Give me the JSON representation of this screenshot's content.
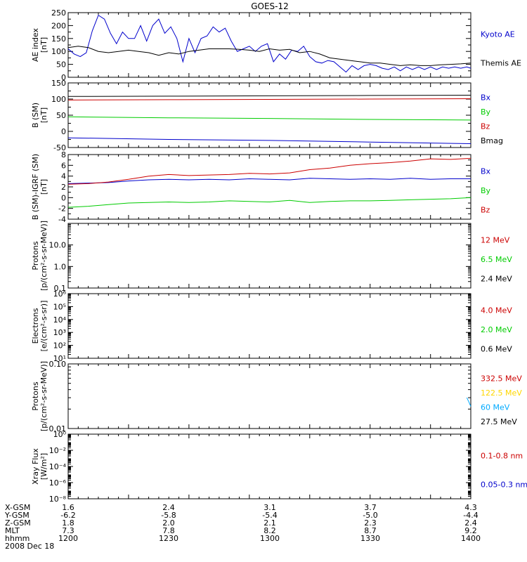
{
  "title": "GOES-12",
  "time_axis": {
    "range": [
      1200,
      1400
    ],
    "rows": [
      {
        "label": "X-GSM",
        "values": [
          "1.6",
          "2.4",
          "3.1",
          "3.7",
          "4.3"
        ]
      },
      {
        "label": "Y-GSM",
        "values": [
          "-6.2",
          "-5.8",
          "-5.4",
          "-5.0",
          "-4.4"
        ]
      },
      {
        "label": "Z-GSM",
        "values": [
          "1.8",
          "2.0",
          "2.1",
          "2.3",
          "2.4"
        ]
      },
      {
        "label": "MLT",
        "values": [
          "7.3",
          "7.8",
          "8.2",
          "8.7",
          "9.2"
        ]
      },
      {
        "label": "hhmm",
        "values": [
          "1200",
          "1230",
          "1300",
          "1330",
          "1400"
        ]
      }
    ],
    "date": "2008 Dec 18"
  },
  "chart_data": [
    {
      "type": "line",
      "ylabel": "AE index",
      "yunit": "[nT]",
      "ylim": [
        0,
        250
      ],
      "yticks": [
        "0",
        "50",
        "100",
        "150",
        "200",
        "250"
      ],
      "series": [
        {
          "name": "Kyoto AE",
          "color": "#0000cc",
          "x": [
            1200,
            1203,
            1206,
            1209,
            1212,
            1215,
            1218,
            1221,
            1224,
            1227,
            1230,
            1233,
            1236,
            1239,
            1242,
            1245,
            1248,
            1251,
            1254,
            1257,
            1260,
            1263,
            1266,
            1269,
            1272,
            1275,
            1278,
            1281,
            1284,
            1287,
            1290,
            1293,
            1296,
            1299,
            1302,
            1305,
            1308,
            1311,
            1314,
            1317,
            1320,
            1323,
            1326,
            1329,
            1332,
            1335,
            1338,
            1341,
            1344,
            1347,
            1350,
            1353,
            1356,
            1359,
            1362,
            1365,
            1368,
            1371,
            1374,
            1377,
            1380,
            1383,
            1386,
            1389,
            1392,
            1395,
            1398,
            1400
          ],
          "y": [
            110,
            90,
            80,
            95,
            180,
            240,
            225,
            170,
            130,
            175,
            150,
            150,
            200,
            140,
            200,
            225,
            170,
            195,
            150,
            60,
            150,
            95,
            150,
            160,
            195,
            175,
            190,
            140,
            100,
            110,
            120,
            100,
            120,
            130,
            60,
            90,
            70,
            105,
            100,
            120,
            80,
            60,
            55,
            65,
            60,
            40,
            20,
            45,
            30,
            45,
            50,
            45,
            35,
            30,
            40,
            25,
            40,
            30,
            40,
            30,
            40,
            30,
            40,
            35,
            40,
            35,
            40,
            35
          ]
        },
        {
          "name": "Themis AE",
          "color": "#000000",
          "x": [
            1200,
            1205,
            1210,
            1215,
            1220,
            1225,
            1230,
            1235,
            1240,
            1245,
            1250,
            1255,
            1260,
            1265,
            1270,
            1275,
            1280,
            1285,
            1290,
            1295,
            1300,
            1305,
            1310,
            1315,
            1320,
            1325,
            1330,
            1335,
            1340,
            1345,
            1350,
            1355,
            1360,
            1365,
            1370,
            1375,
            1380,
            1385,
            1390,
            1395,
            1400
          ],
          "y": [
            115,
            120,
            115,
            100,
            95,
            100,
            105,
            100,
            95,
            85,
            95,
            90,
            100,
            105,
            110,
            110,
            110,
            108,
            105,
            100,
            110,
            105,
            108,
            95,
            100,
            90,
            75,
            70,
            65,
            60,
            55,
            55,
            50,
            45,
            48,
            45,
            45,
            48,
            50,
            52,
            55
          ]
        }
      ]
    },
    {
      "type": "line",
      "ylabel": "B (SM)",
      "yunit": "[nT]",
      "ylim": [
        -50,
        150
      ],
      "yticks": [
        "-50",
        "0",
        "50",
        "100",
        "150"
      ],
      "series": [
        {
          "name": "Bx",
          "color": "#0000cc",
          "x": [
            1200,
            1250,
            1300,
            1350,
            1400
          ],
          "y": [
            -20,
            -25,
            -28,
            -33,
            -38
          ]
        },
        {
          "name": "By",
          "color": "#00cc00",
          "x": [
            1200,
            1250,
            1300,
            1350,
            1400
          ],
          "y": [
            45,
            42,
            40,
            37,
            35
          ]
        },
        {
          "name": "Bz",
          "color": "#cc0000",
          "x": [
            1200,
            1250,
            1300,
            1350,
            1400
          ],
          "y": [
            97,
            98,
            99,
            100,
            101
          ]
        },
        {
          "name": "Bmag",
          "color": "#000000",
          "x": [
            1200,
            1250,
            1300,
            1350,
            1400
          ],
          "y": [
            108,
            109,
            110,
            111,
            112
          ]
        }
      ]
    },
    {
      "type": "line",
      "ylabel": "B (SM)-IGRF (SM)",
      "yunit": "[nT]",
      "ylim": [
        -4,
        8
      ],
      "yticks": [
        "-4",
        "-2",
        "0",
        "2",
        "4",
        "6",
        "8"
      ],
      "series": [
        {
          "name": "Bx",
          "color": "#0000cc",
          "x": [
            1200,
            1210,
            1220,
            1230,
            1240,
            1250,
            1260,
            1270,
            1280,
            1290,
            1300,
            1310,
            1320,
            1330,
            1340,
            1350,
            1360,
            1370,
            1380,
            1390,
            1400
          ],
          "y": [
            2.6,
            2.7,
            2.8,
            3.1,
            3.3,
            3.4,
            3.3,
            3.4,
            3.3,
            3.5,
            3.4,
            3.3,
            3.6,
            3.5,
            3.4,
            3.5,
            3.4,
            3.6,
            3.4,
            3.5,
            3.5
          ]
        },
        {
          "name": "By",
          "color": "#00cc00",
          "x": [
            1200,
            1210,
            1220,
            1230,
            1240,
            1250,
            1260,
            1270,
            1280,
            1290,
            1300,
            1310,
            1320,
            1330,
            1340,
            1350,
            1360,
            1370,
            1380,
            1390,
            1400
          ],
          "y": [
            -1.8,
            -1.6,
            -1.3,
            -1.0,
            -0.9,
            -0.8,
            -0.9,
            -0.8,
            -0.6,
            -0.7,
            -0.8,
            -0.5,
            -0.9,
            -0.7,
            -0.6,
            -0.6,
            -0.5,
            -0.4,
            -0.3,
            -0.2,
            0.0
          ]
        },
        {
          "name": "Bz",
          "color": "#cc0000",
          "x": [
            1200,
            1210,
            1220,
            1230,
            1240,
            1250,
            1260,
            1270,
            1280,
            1290,
            1300,
            1310,
            1320,
            1330,
            1340,
            1350,
            1360,
            1370,
            1380,
            1390,
            1400
          ],
          "y": [
            2.5,
            2.6,
            2.9,
            3.4,
            4.0,
            4.3,
            4.1,
            4.2,
            4.3,
            4.5,
            4.4,
            4.6,
            5.2,
            5.5,
            6.0,
            6.3,
            6.5,
            6.8,
            7.2,
            7.1,
            7.3
          ]
        }
      ]
    },
    {
      "type": "line",
      "ylabel": "Protons",
      "yunit": "[p/(cm²-s-sr-MeV)]",
      "yscale": "log",
      "ylim": [
        0.1,
        100
      ],
      "ytick_values": [
        0.1,
        1.0,
        10.0
      ],
      "yticks": [
        "0.1",
        "1.0",
        "10.0"
      ],
      "series": [
        {
          "name": "12 MeV",
          "color": "#cc0000",
          "x": [],
          "y": []
        },
        {
          "name": "6.5 MeV",
          "color": "#00cc00",
          "x": [],
          "y": []
        },
        {
          "name": "2.4 MeV",
          "color": "#000000",
          "x": [],
          "y": []
        }
      ]
    },
    {
      "type": "line",
      "ylabel": "Electrons",
      "yunit": "[e/(cm²-s-sr)]",
      "yscale": "log",
      "ylim": [
        10,
        1000000
      ],
      "ytick_values": [
        10,
        100,
        1000,
        10000,
        100000,
        1000000
      ],
      "yticks": [
        "10¹",
        "10²",
        "10³",
        "10⁴",
        "10⁵",
        "10⁶"
      ],
      "series": [
        {
          "name": "4.0 MeV",
          "color": "#cc0000",
          "x": [],
          "y": []
        },
        {
          "name": "2.0 MeV",
          "color": "#00cc00",
          "x": [],
          "y": []
        },
        {
          "name": "0.6 MeV",
          "color": "#000000",
          "x": [],
          "y": []
        }
      ]
    },
    {
      "type": "line",
      "ylabel": "Protons",
      "yunit": "[p/(cm²-s-sr-MeV)]",
      "yscale": "log",
      "ylim": [
        0.01,
        0.1
      ],
      "ytick_values": [
        0.01,
        0.1
      ],
      "yticks": [
        "0.01",
        "0.10"
      ],
      "series": [
        {
          "name": "332.5 MeV",
          "color": "#cc0000",
          "x": [],
          "y": []
        },
        {
          "name": "122.5 MeV",
          "color": "#ffd700",
          "x": [],
          "y": []
        },
        {
          "name": "60 MeV",
          "color": "#00aaff",
          "x": [
            1398,
            1399,
            1400
          ],
          "y": [
            0.03,
            0.026,
            0.022
          ]
        },
        {
          "name": "27.5 MeV",
          "color": "#000000",
          "x": [],
          "y": []
        }
      ]
    },
    {
      "type": "line",
      "ylabel": "Xray Flux",
      "yunit": "[W/m²]",
      "yscale": "log",
      "ylim": [
        1e-08,
        1
      ],
      "ytick_values": [
        1e-08,
        1e-06,
        0.0001,
        0.01,
        1
      ],
      "yticks": [
        "10⁻⁸",
        "10⁻⁶",
        "10⁻⁴",
        "10⁻²",
        "10⁰"
      ],
      "series": [
        {
          "name": "0.1-0.8 nm",
          "color": "#cc0000",
          "x": [],
          "y": []
        },
        {
          "name": "0.05-0.3 nm",
          "color": "#0000cc",
          "x": [],
          "y": []
        }
      ]
    }
  ]
}
